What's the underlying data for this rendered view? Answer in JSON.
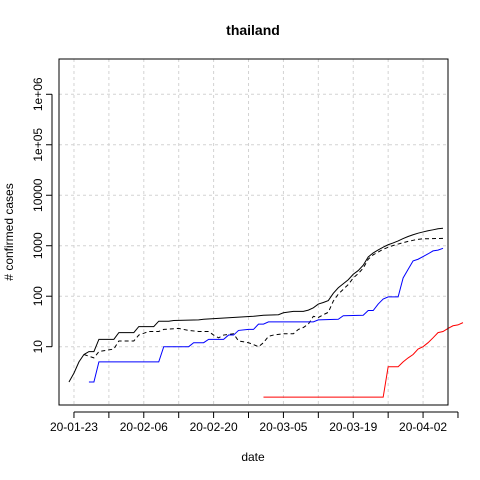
{
  "chart_data": {
    "type": "line",
    "title": "thailand",
    "xlabel": "date",
    "ylabel": "# confirmed cases",
    "x_range": [
      "2020-01-20",
      "2020-04-07"
    ],
    "y_range": [
      0.7,
      5000000
    ],
    "y_scale": "log",
    "grid": true,
    "x_ticks": [
      {
        "date": "2020-01-23",
        "label": "20-01-23"
      },
      {
        "date": "2020-02-06",
        "label": "20-02-06"
      },
      {
        "date": "2020-02-20",
        "label": "20-02-20"
      },
      {
        "date": "2020-03-05",
        "label": "20-03-05"
      },
      {
        "date": "2020-03-19",
        "label": "20-03-19"
      },
      {
        "date": "2020-04-02",
        "label": "20-04-02"
      }
    ],
    "x_minor_ticks": [
      "2020-01-30",
      "2020-02-13",
      "2020-02-27",
      "2020-03-12",
      "2020-03-26",
      "2020-04-09"
    ],
    "y_ticks": [
      {
        "value": 10,
        "label": "10"
      },
      {
        "value": 100,
        "label": "100"
      },
      {
        "value": 1000,
        "label": "1000"
      },
      {
        "value": 10000,
        "label": "10000"
      },
      {
        "value": 100000,
        "label": "1e+05"
      },
      {
        "value": 1000000,
        "label": "1e+06"
      }
    ],
    "series": [
      {
        "color": "#000000",
        "style": "solid",
        "points": [
          [
            "2020-01-22",
            2
          ],
          [
            "2020-01-23",
            3
          ],
          [
            "2020-01-24",
            5
          ],
          [
            "2020-01-25",
            7
          ],
          [
            "2020-01-26",
            8
          ],
          [
            "2020-01-27",
            8
          ],
          [
            "2020-01-28",
            14
          ],
          [
            "2020-01-31",
            14
          ],
          [
            "2020-02-01",
            19
          ],
          [
            "2020-02-04",
            19
          ],
          [
            "2020-02-05",
            25
          ],
          [
            "2020-02-08",
            25
          ],
          [
            "2020-02-09",
            32
          ],
          [
            "2020-02-11",
            32
          ],
          [
            "2020-02-12",
            33
          ],
          [
            "2020-02-17",
            34
          ],
          [
            "2020-02-18",
            35
          ],
          [
            "2020-02-28",
            40
          ],
          [
            "2020-03-01",
            42
          ],
          [
            "2020-03-04",
            43
          ],
          [
            "2020-03-05",
            47
          ],
          [
            "2020-03-07",
            50
          ],
          [
            "2020-03-09",
            50
          ],
          [
            "2020-03-10",
            53
          ],
          [
            "2020-03-11",
            59
          ],
          [
            "2020-03-12",
            70
          ],
          [
            "2020-03-13",
            75
          ],
          [
            "2020-03-14",
            82
          ],
          [
            "2020-03-15",
            114
          ],
          [
            "2020-03-16",
            147
          ],
          [
            "2020-03-17",
            177
          ],
          [
            "2020-03-18",
            212
          ],
          [
            "2020-03-19",
            272
          ],
          [
            "2020-03-20",
            322
          ],
          [
            "2020-03-21",
            411
          ],
          [
            "2020-03-22",
            599
          ],
          [
            "2020-03-23",
            721
          ],
          [
            "2020-03-24",
            827
          ],
          [
            "2020-03-25",
            934
          ],
          [
            "2020-03-26",
            1045
          ],
          [
            "2020-03-27",
            1136
          ],
          [
            "2020-03-28",
            1245
          ],
          [
            "2020-03-29",
            1388
          ],
          [
            "2020-03-30",
            1524
          ],
          [
            "2020-03-31",
            1651
          ],
          [
            "2020-04-01",
            1771
          ],
          [
            "2020-04-02",
            1875
          ],
          [
            "2020-04-03",
            1978
          ],
          [
            "2020-04-04",
            2067
          ],
          [
            "2020-04-05",
            2169
          ],
          [
            "2020-04-06",
            2220
          ]
        ]
      },
      {
        "color": "#000000",
        "style": "dashed",
        "points": [
          [
            "2020-01-25",
            7
          ],
          [
            "2020-01-27",
            6
          ],
          [
            "2020-01-28",
            8
          ],
          [
            "2020-01-31",
            9
          ],
          [
            "2020-02-01",
            13
          ],
          [
            "2020-02-04",
            13
          ],
          [
            "2020-02-05",
            17
          ],
          [
            "2020-02-07",
            20
          ],
          [
            "2020-02-09",
            20
          ],
          [
            "2020-02-10",
            22
          ],
          [
            "2020-02-13",
            23
          ],
          [
            "2020-02-15",
            21
          ],
          [
            "2020-02-17",
            20
          ],
          [
            "2020-02-19",
            20
          ],
          [
            "2020-02-20",
            17
          ],
          [
            "2020-02-21",
            15
          ],
          [
            "2020-02-22",
            17
          ],
          [
            "2020-02-24",
            18
          ],
          [
            "2020-02-25",
            13
          ],
          [
            "2020-02-27",
            12
          ],
          [
            "2020-02-28",
            11
          ],
          [
            "2020-02-29",
            10
          ],
          [
            "2020-03-01",
            12
          ],
          [
            "2020-03-02",
            16
          ],
          [
            "2020-03-03",
            17
          ],
          [
            "2020-03-05",
            18
          ],
          [
            "2020-03-07",
            18
          ],
          [
            "2020-03-08",
            22
          ],
          [
            "2020-03-09",
            24
          ],
          [
            "2020-03-10",
            28
          ],
          [
            "2020-03-11",
            40
          ],
          [
            "2020-03-12",
            38
          ],
          [
            "2020-03-13",
            43
          ],
          [
            "2020-03-14",
            48
          ],
          [
            "2020-03-15",
            80
          ],
          [
            "2020-03-16",
            110
          ],
          [
            "2020-03-17",
            137
          ],
          [
            "2020-03-18",
            170
          ],
          [
            "2020-03-19",
            230
          ],
          [
            "2020-03-20",
            280
          ],
          [
            "2020-03-21",
            360
          ],
          [
            "2020-03-22",
            540
          ],
          [
            "2020-03-23",
            660
          ],
          [
            "2020-03-24",
            750
          ],
          [
            "2020-03-25",
            850
          ],
          [
            "2020-03-26",
            930
          ],
          [
            "2020-03-27",
            1010
          ],
          [
            "2020-03-28",
            1080
          ],
          [
            "2020-03-29",
            1150
          ],
          [
            "2020-03-30",
            1220
          ],
          [
            "2020-03-31",
            1280
          ],
          [
            "2020-04-01",
            1340
          ],
          [
            "2020-04-02",
            1370
          ],
          [
            "2020-04-06",
            1400
          ]
        ]
      },
      {
        "color": "#0000ff",
        "style": "solid",
        "points": [
          [
            "2020-01-26",
            2
          ],
          [
            "2020-01-27",
            2
          ],
          [
            "2020-01-28",
            5
          ],
          [
            "2020-02-09",
            5
          ],
          [
            "2020-02-10",
            10
          ],
          [
            "2020-02-15",
            10
          ],
          [
            "2020-02-16",
            12
          ],
          [
            "2020-02-18",
            12
          ],
          [
            "2020-02-19",
            14
          ],
          [
            "2020-02-22",
            14
          ],
          [
            "2020-02-23",
            17
          ],
          [
            "2020-02-24",
            17
          ],
          [
            "2020-02-25",
            21
          ],
          [
            "2020-02-27",
            22
          ],
          [
            "2020-02-28",
            22
          ],
          [
            "2020-02-29",
            28
          ],
          [
            "2020-03-01",
            28
          ],
          [
            "2020-03-02",
            31
          ],
          [
            "2020-03-11",
            31
          ],
          [
            "2020-03-12",
            34
          ],
          [
            "2020-03-16",
            35
          ],
          [
            "2020-03-17",
            41
          ],
          [
            "2020-03-21",
            42
          ],
          [
            "2020-03-22",
            52
          ],
          [
            "2020-03-23",
            52
          ],
          [
            "2020-03-24",
            70
          ],
          [
            "2020-03-25",
            88
          ],
          [
            "2020-03-26",
            97
          ],
          [
            "2020-03-28",
            97
          ],
          [
            "2020-03-29",
            230
          ],
          [
            "2020-03-30",
            340
          ],
          [
            "2020-03-31",
            500
          ],
          [
            "2020-04-01",
            540
          ],
          [
            "2020-04-02",
            610
          ],
          [
            "2020-04-03",
            690
          ],
          [
            "2020-04-04",
            790
          ],
          [
            "2020-04-05",
            820
          ],
          [
            "2020-04-06",
            890
          ]
        ]
      },
      {
        "color": "#ff0000",
        "style": "solid",
        "points": [
          [
            "2020-03-01",
            1
          ],
          [
            "2020-03-25",
            1
          ],
          [
            "2020-03-26",
            4
          ],
          [
            "2020-03-28",
            4
          ],
          [
            "2020-03-29",
            5
          ],
          [
            "2020-03-30",
            6
          ],
          [
            "2020-03-31",
            7
          ],
          [
            "2020-04-01",
            9
          ],
          [
            "2020-04-02",
            10
          ],
          [
            "2020-04-03",
            12
          ],
          [
            "2020-04-04",
            15
          ],
          [
            "2020-04-05",
            19
          ],
          [
            "2020-04-06",
            20
          ],
          [
            "2020-04-07",
            23
          ],
          [
            "2020-04-08",
            26
          ],
          [
            "2020-04-09",
            27
          ],
          [
            "2020-04-10",
            30
          ]
        ]
      }
    ]
  }
}
